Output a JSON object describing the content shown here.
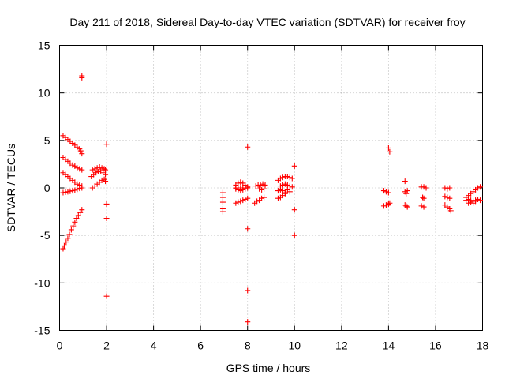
{
  "chart_data": {
    "type": "scatter",
    "title": "Day 211 of 2018, Sidereal Day-to-day VTEC variation (SDTVAR) for receiver froy",
    "xlabel": "GPS time / hours",
    "ylabel": "SDTVAR / TECUs",
    "xlim": [
      0,
      18
    ],
    "ylim": [
      -15,
      15
    ],
    "xticks": [
      0,
      2,
      4,
      6,
      8,
      10,
      12,
      14,
      16,
      18
    ],
    "yticks": [
      -15,
      -10,
      -5,
      0,
      5,
      10,
      15
    ],
    "grid": true,
    "marker": "+",
    "color": "#ff0000",
    "series": [
      {
        "name": "SDTVAR",
        "points": [
          [
            0.15,
            5.5
          ],
          [
            0.25,
            5.3
          ],
          [
            0.35,
            5.1
          ],
          [
            0.45,
            4.9
          ],
          [
            0.55,
            4.7
          ],
          [
            0.65,
            4.5
          ],
          [
            0.75,
            4.3
          ],
          [
            0.85,
            4.1
          ],
          [
            0.9,
            3.9
          ],
          [
            0.95,
            3.6
          ],
          [
            0.15,
            3.2
          ],
          [
            0.25,
            3.0
          ],
          [
            0.35,
            2.8
          ],
          [
            0.45,
            2.6
          ],
          [
            0.55,
            2.4
          ],
          [
            0.65,
            2.3
          ],
          [
            0.75,
            2.1
          ],
          [
            0.85,
            2.0
          ],
          [
            0.95,
            1.9
          ],
          [
            0.15,
            1.6
          ],
          [
            0.25,
            1.4
          ],
          [
            0.35,
            1.2
          ],
          [
            0.45,
            1.0
          ],
          [
            0.55,
            0.8
          ],
          [
            0.65,
            0.6
          ],
          [
            0.75,
            0.4
          ],
          [
            0.85,
            0.3
          ],
          [
            0.95,
            0.2
          ],
          [
            0.15,
            -0.5
          ],
          [
            0.25,
            -0.45
          ],
          [
            0.35,
            -0.4
          ],
          [
            0.45,
            -0.35
          ],
          [
            0.55,
            -0.3
          ],
          [
            0.65,
            -0.25
          ],
          [
            0.75,
            -0.15
          ],
          [
            0.85,
            -0.05
          ],
          [
            0.95,
            0.0
          ],
          [
            0.15,
            -6.4
          ],
          [
            0.2,
            -6.1
          ],
          [
            0.28,
            -5.7
          ],
          [
            0.35,
            -5.3
          ],
          [
            0.42,
            -4.9
          ],
          [
            0.5,
            -4.4
          ],
          [
            0.58,
            -4.0
          ],
          [
            0.65,
            -3.6
          ],
          [
            0.72,
            -3.2
          ],
          [
            0.8,
            -2.9
          ],
          [
            0.88,
            -2.6
          ],
          [
            0.95,
            -2.3
          ],
          [
            0.95,
            11.8
          ],
          [
            0.95,
            11.6
          ],
          [
            1.4,
            1.9
          ],
          [
            1.5,
            2.0
          ],
          [
            1.6,
            2.1
          ],
          [
            1.7,
            2.2
          ],
          [
            1.8,
            2.1
          ],
          [
            1.9,
            2.0
          ],
          [
            1.95,
            1.9
          ],
          [
            1.35,
            1.2
          ],
          [
            1.45,
            1.4
          ],
          [
            1.55,
            1.6
          ],
          [
            1.65,
            1.7
          ],
          [
            1.75,
            1.8
          ],
          [
            1.85,
            1.6
          ],
          [
            1.95,
            1.4
          ],
          [
            1.4,
            0.0
          ],
          [
            1.5,
            0.2
          ],
          [
            1.6,
            0.4
          ],
          [
            1.7,
            0.6
          ],
          [
            1.8,
            0.8
          ],
          [
            1.9,
            0.9
          ],
          [
            1.95,
            0.7
          ],
          [
            2.0,
            4.6
          ],
          [
            2.0,
            -1.7
          ],
          [
            2.0,
            -3.2
          ],
          [
            2.0,
            -11.4
          ],
          [
            6.95,
            -0.5
          ],
          [
            6.95,
            -1.0
          ],
          [
            6.95,
            -1.5
          ],
          [
            6.95,
            -2.2
          ],
          [
            6.95,
            -2.5
          ],
          [
            7.5,
            0.3
          ],
          [
            7.6,
            0.5
          ],
          [
            7.7,
            0.6
          ],
          [
            7.8,
            0.5
          ],
          [
            7.9,
            0.3
          ],
          [
            8.0,
            0.1
          ],
          [
            7.5,
            -0.1
          ],
          [
            7.6,
            -0.2
          ],
          [
            7.7,
            -0.3
          ],
          [
            7.8,
            -0.2
          ],
          [
            7.9,
            -0.1
          ],
          [
            8.0,
            0.0
          ],
          [
            7.5,
            -1.6
          ],
          [
            7.6,
            -1.5
          ],
          [
            7.7,
            -1.4
          ],
          [
            7.8,
            -1.3
          ],
          [
            7.9,
            -1.2
          ],
          [
            8.0,
            -1.1
          ],
          [
            7.5,
            0.0
          ],
          [
            7.6,
            0.0
          ],
          [
            7.7,
            0.0
          ],
          [
            7.8,
            0.0
          ],
          [
            8.0,
            4.3
          ],
          [
            8.0,
            -4.3
          ],
          [
            8.0,
            -10.8
          ],
          [
            8.0,
            -14.1
          ],
          [
            8.3,
            -1.6
          ],
          [
            8.4,
            -1.4
          ],
          [
            8.5,
            -1.3
          ],
          [
            8.6,
            -1.1
          ],
          [
            8.7,
            -1.0
          ],
          [
            8.35,
            0.2
          ],
          [
            8.45,
            0.3
          ],
          [
            8.55,
            0.3
          ],
          [
            8.65,
            0.4
          ],
          [
            8.75,
            0.3
          ],
          [
            8.5,
            -0.1
          ],
          [
            8.6,
            -0.2
          ],
          [
            8.7,
            -0.1
          ],
          [
            9.3,
            0.8
          ],
          [
            9.4,
            1.0
          ],
          [
            9.5,
            1.1
          ],
          [
            9.6,
            1.2
          ],
          [
            9.7,
            1.2
          ],
          [
            9.8,
            1.1
          ],
          [
            9.9,
            1.0
          ],
          [
            9.4,
            0.2
          ],
          [
            9.5,
            0.3
          ],
          [
            9.6,
            0.4
          ],
          [
            9.7,
            0.3
          ],
          [
            9.8,
            0.2
          ],
          [
            9.9,
            0.1
          ],
          [
            9.3,
            -0.3
          ],
          [
            9.4,
            -0.2
          ],
          [
            9.5,
            -0.3
          ],
          [
            9.6,
            -0.5
          ],
          [
            9.7,
            -0.2
          ],
          [
            9.8,
            -0.4
          ],
          [
            9.3,
            -1.1
          ],
          [
            9.4,
            -1.0
          ],
          [
            9.5,
            -0.8
          ],
          [
            9.6,
            -0.6
          ],
          [
            10.0,
            2.3
          ],
          [
            10.0,
            -2.3
          ],
          [
            10.0,
            -5.0
          ],
          [
            13.8,
            -0.3
          ],
          [
            13.9,
            -0.4
          ],
          [
            14.0,
            -0.5
          ],
          [
            13.8,
            -1.9
          ],
          [
            13.9,
            -1.8
          ],
          [
            14.0,
            -1.7
          ],
          [
            14.05,
            -1.6
          ],
          [
            14.0,
            4.2
          ],
          [
            14.05,
            3.8
          ],
          [
            14.7,
            0.7
          ],
          [
            14.7,
            -0.4
          ],
          [
            14.75,
            -0.6
          ],
          [
            14.8,
            -0.3
          ],
          [
            14.7,
            -1.8
          ],
          [
            14.75,
            -1.9
          ],
          [
            14.8,
            -2.0
          ],
          [
            15.4,
            0.1
          ],
          [
            15.5,
            0.1
          ],
          [
            15.6,
            0.0
          ],
          [
            15.45,
            -1.0
          ],
          [
            15.5,
            -1.1
          ],
          [
            15.4,
            -1.9
          ],
          [
            15.5,
            -2.0
          ],
          [
            16.4,
            0.0
          ],
          [
            16.5,
            -0.1
          ],
          [
            16.6,
            0.0
          ],
          [
            16.4,
            -0.9
          ],
          [
            16.5,
            -1.0
          ],
          [
            16.6,
            -1.1
          ],
          [
            16.4,
            -1.8
          ],
          [
            16.5,
            -2.0
          ],
          [
            16.6,
            -2.2
          ],
          [
            16.65,
            -2.4
          ],
          [
            17.3,
            -1.0
          ],
          [
            17.4,
            -0.8
          ],
          [
            17.5,
            -0.6
          ],
          [
            17.6,
            -0.4
          ],
          [
            17.7,
            -0.2
          ],
          [
            17.8,
            0.0
          ],
          [
            17.9,
            0.1
          ],
          [
            17.3,
            -1.3
          ],
          [
            17.4,
            -1.2
          ],
          [
            17.5,
            -1.3
          ],
          [
            17.6,
            -1.4
          ],
          [
            17.7,
            -1.3
          ],
          [
            17.8,
            -1.2
          ],
          [
            17.9,
            -1.3
          ],
          [
            17.4,
            -1.6
          ],
          [
            17.5,
            -1.5
          ],
          [
            17.6,
            -1.6
          ],
          [
            17.7,
            -1.4
          ]
        ]
      }
    ]
  }
}
